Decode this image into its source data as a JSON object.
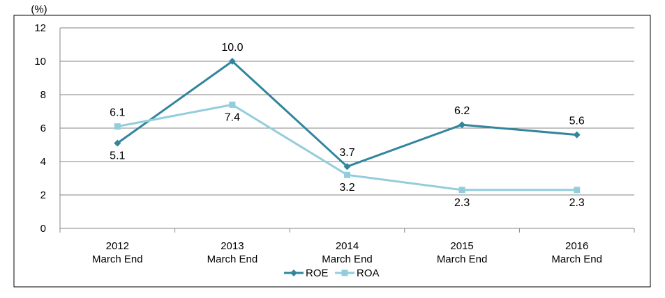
{
  "chart_data": {
    "type": "line",
    "unit_label": "(%)",
    "categories": [
      [
        "2012",
        "March End"
      ],
      [
        "2013",
        "March End"
      ],
      [
        "2014",
        "March End"
      ],
      [
        "2015",
        "March End"
      ],
      [
        "2016",
        "March End"
      ]
    ],
    "series": [
      {
        "name": "ROE",
        "values": [
          5.1,
          10.0,
          3.7,
          6.2,
          5.6
        ],
        "labels": [
          "5.1",
          "10.0",
          "3.7",
          "6.2",
          "5.6"
        ],
        "label_pos": [
          "below",
          "above",
          "above",
          "above",
          "above"
        ],
        "color": "#31859c",
        "marker": "diamond"
      },
      {
        "name": "ROA",
        "values": [
          6.1,
          7.4,
          3.2,
          2.3,
          2.3
        ],
        "labels": [
          "6.1",
          "7.4",
          "3.2",
          "2.3",
          "2.3"
        ],
        "label_pos": [
          "above",
          "below",
          "below",
          "below",
          "below"
        ],
        "color": "#93cddd",
        "marker": "square"
      }
    ],
    "ylim": [
      0,
      12
    ],
    "yticks": [
      0,
      2,
      4,
      6,
      8,
      10,
      12
    ],
    "grid": true,
    "legend_position": "bottom"
  }
}
